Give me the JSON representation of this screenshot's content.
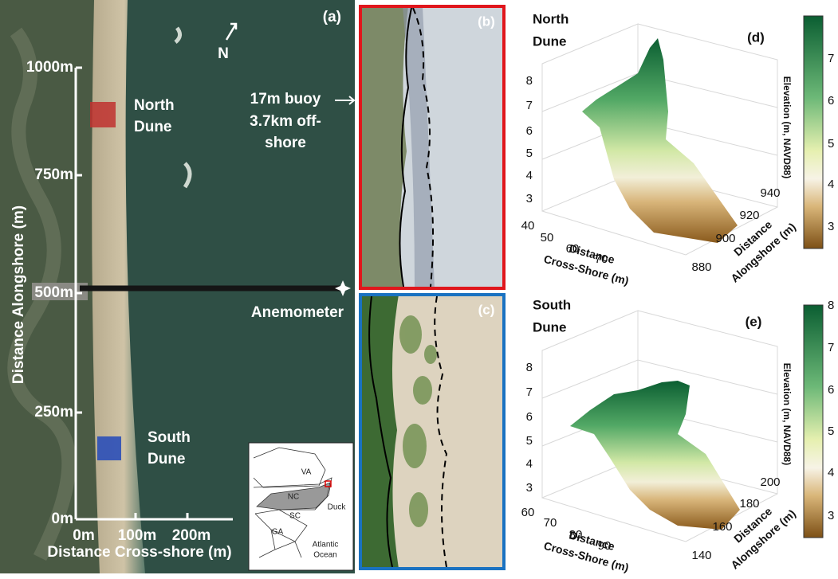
{
  "panel_a": {
    "label": "(a)",
    "compass": "N",
    "y_axis": {
      "title": "Distance Alongshore (m)",
      "ticks": [
        "1000m",
        "750m",
        "500m",
        "250m",
        "0m"
      ]
    },
    "x_axis": {
      "title": "Distance Cross-shore (m)",
      "ticks": [
        "0m",
        "100m",
        "200m"
      ]
    },
    "north_site": [
      "North",
      "Dune"
    ],
    "south_site": [
      "South",
      "Dune"
    ],
    "buoy": [
      "17m buoy",
      "3.7km off-",
      "shore"
    ],
    "anemometer": "Anemometer",
    "inset": {
      "states": [
        "VA",
        "NC",
        "SC",
        "GA"
      ],
      "ocean": [
        "Atlantic",
        "Ocean"
      ],
      "site": "Duck"
    }
  },
  "panel_b": {
    "label": "(b)"
  },
  "panel_c": {
    "label": "(c)"
  },
  "panel_d": {
    "label": "(d)",
    "title": [
      "North",
      "Dune"
    ],
    "z_ticks": [
      "8",
      "7",
      "6",
      "5",
      "4",
      "3"
    ],
    "x_ticks": [
      "40",
      "50",
      "60",
      "70"
    ],
    "y_ticks": [
      "880",
      "900",
      "920",
      "940"
    ],
    "x_title": [
      "Distance",
      "Cross-Shore (m)"
    ],
    "y_title": [
      "Distance",
      "Alongshore (m)"
    ],
    "colorbar": {
      "title": "Elevation (m, NAVD88)",
      "ticks": [
        "7",
        "6",
        "5",
        "4",
        "3"
      ]
    }
  },
  "panel_e": {
    "label": "(e)",
    "title": [
      "South",
      "Dune"
    ],
    "z_ticks": [
      "8",
      "7",
      "6",
      "5",
      "4",
      "3"
    ],
    "x_ticks": [
      "60",
      "70",
      "80",
      "90"
    ],
    "y_ticks": [
      "140",
      "160",
      "180",
      "200"
    ],
    "x_title": [
      "Distance",
      "Cross-Shore (m)"
    ],
    "y_title": [
      "Distance",
      "Alongshore (m)"
    ],
    "colorbar": {
      "title": "Elevation (m, NAVD88)",
      "ticks": [
        "8",
        "7",
        "6",
        "5",
        "4",
        "3"
      ]
    }
  }
}
